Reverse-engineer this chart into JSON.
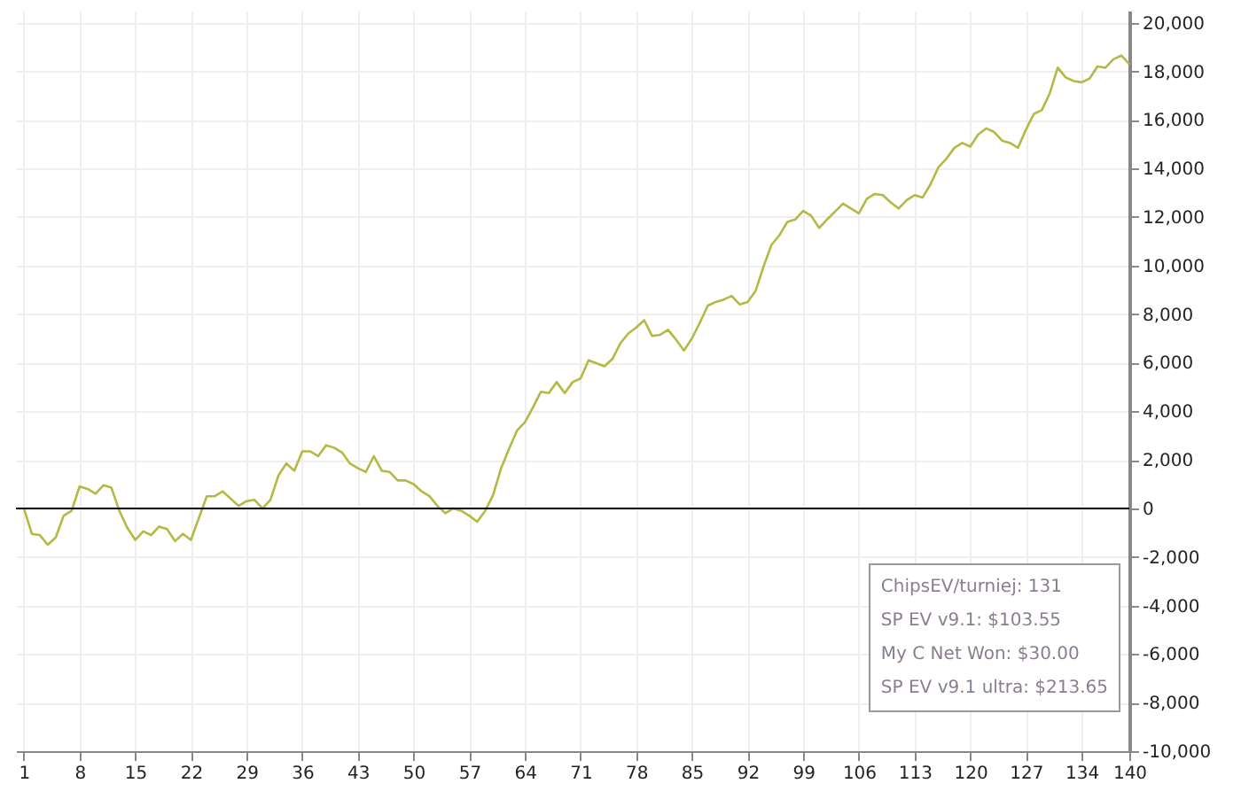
{
  "chart_data": {
    "type": "line",
    "x": [
      1,
      2,
      3,
      4,
      5,
      6,
      7,
      8,
      9,
      10,
      11,
      12,
      13,
      14,
      15,
      16,
      17,
      18,
      19,
      20,
      21,
      22,
      24,
      25,
      26,
      28,
      29,
      30,
      31,
      32,
      33,
      34,
      35,
      36,
      37,
      38,
      39,
      40,
      41,
      42,
      43,
      44,
      45,
      46,
      47,
      48,
      49,
      50,
      51,
      52,
      53,
      54,
      55,
      56,
      57,
      58,
      59,
      60,
      61,
      62,
      63,
      64,
      65,
      66,
      67,
      68,
      69,
      70,
      71,
      72,
      74,
      75,
      76,
      77,
      78,
      79,
      80,
      81,
      82,
      83,
      84,
      85,
      86,
      87,
      88,
      89,
      90,
      91,
      92,
      93,
      94,
      95,
      96,
      97,
      98,
      99,
      100,
      101,
      102,
      104,
      105,
      106,
      107,
      108,
      109,
      110,
      111,
      112,
      113,
      114,
      115,
      116,
      117,
      118,
      119,
      120,
      121,
      122,
      123,
      124,
      125,
      126,
      127,
      128,
      129,
      130,
      131,
      132,
      133,
      134,
      135,
      136,
      137,
      138,
      139,
      140
    ],
    "series": [
      {
        "color": "#b5b842",
        "values": [
          0,
          -1050,
          -1100,
          -1500,
          -1200,
          -300,
          -100,
          900,
          800,
          600,
          950,
          850,
          -100,
          -800,
          -1300,
          -950,
          -1100,
          -750,
          -850,
          -1350,
          -1050,
          -1300,
          500,
          500,
          700,
          100,
          300,
          350,
          0,
          350,
          1350,
          1850,
          1550,
          2350,
          2350,
          2150,
          2600,
          2500,
          2300,
          1850,
          1650,
          1500,
          2150,
          1550,
          1500,
          1150,
          1150,
          1000,
          700,
          500,
          100,
          -200,
          0,
          -100,
          -300,
          -550,
          -100,
          550,
          1650,
          2450,
          3200,
          3550,
          4150,
          4800,
          4750,
          5200,
          4750,
          5200,
          5350,
          6100,
          5850,
          6150,
          6800,
          7200,
          7450,
          7750,
          7100,
          7150,
          7350,
          6950,
          6500,
          7000,
          7650,
          8350,
          8500,
          8600,
          8750,
          8400,
          8500,
          8950,
          9950,
          10850,
          11250,
          11800,
          11900,
          12250,
          12050,
          11550,
          11900,
          12550,
          12350,
          12150,
          12750,
          12950,
          12900,
          12600,
          12350,
          12700,
          12900,
          12800,
          13350,
          14050,
          14400,
          14850,
          15050,
          14900,
          15400,
          15650,
          15500,
          15150,
          15050,
          14850,
          15600,
          16250,
          16400,
          17100,
          18150,
          17750,
          17600,
          17550,
          17700,
          18200,
          18150,
          18500,
          18650,
          18300
        ]
      }
    ],
    "xlim": [
      0,
      140
    ],
    "xticks": [
      1,
      8,
      15,
      22,
      29,
      36,
      43,
      50,
      57,
      64,
      71,
      78,
      85,
      92,
      99,
      106,
      113,
      120,
      127,
      134,
      140
    ],
    "ylim": [
      -10000,
      20500
    ],
    "yticks": [
      {
        "value": -10000,
        "label": "-10,000"
      },
      {
        "value": -8000,
        "label": "-8,000"
      },
      {
        "value": -6000,
        "label": "-6,000"
      },
      {
        "value": -4000,
        "label": "-4,000"
      },
      {
        "value": -2000,
        "label": "-2,000"
      },
      0,
      {
        "value": 2000,
        "label": "2,000"
      },
      {
        "value": 4000,
        "label": "4,000"
      },
      {
        "value": 6000,
        "label": "6,000"
      },
      {
        "value": 8000,
        "label": "8,000"
      },
      {
        "value": 10000,
        "label": "10,000"
      },
      {
        "value": 12000,
        "label": "12,000"
      },
      {
        "value": 14000,
        "label": "14,000"
      },
      {
        "value": 16000,
        "label": "16,000"
      },
      {
        "value": 18000,
        "label": "18,000"
      },
      {
        "value": 20000,
        "label": "20,000"
      }
    ],
    "grid": true,
    "ref_lines": [
      {
        "axis": "y",
        "value": 0,
        "color": "#000000"
      }
    ],
    "annotations": [
      "ChipsEV/turniej: 131",
      "SP EV v9.1: $103.55",
      "My C Net Won: $30.00",
      "SP EV v9.1 ultra: $213.65"
    ]
  }
}
